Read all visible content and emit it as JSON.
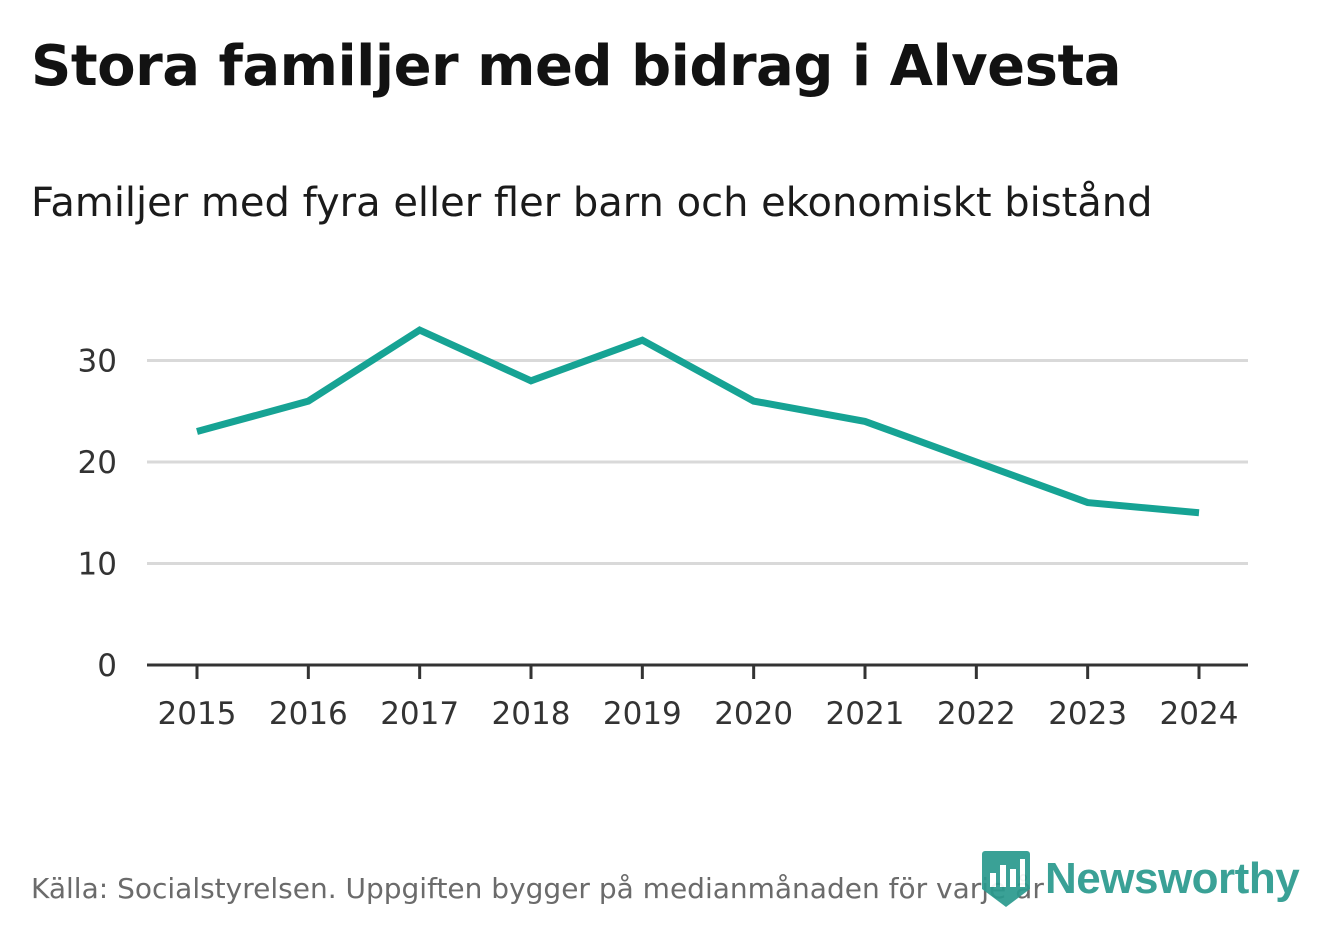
{
  "header": {
    "title": "Stora familjer med bidrag i Alvesta",
    "subtitle": "Familjer med fyra eller fler barn och ekonomiskt bistånd"
  },
  "footer": {
    "source": "Källa: Socialstyrelsen. Uppgiften bygger på medianmånaden för varje år",
    "brand": "Newsworthy"
  },
  "colors": {
    "line": "#16a394",
    "grid": "#d9d9d9",
    "axis": "#333333",
    "brand": "#2a9a8e"
  },
  "chart_data": {
    "type": "line",
    "title": "Stora familjer med bidrag i Alvesta",
    "subtitle": "Familjer med fyra eller fler barn och ekonomiskt bistånd",
    "xlabel": "",
    "ylabel": "",
    "categories": [
      "2015",
      "2016",
      "2017",
      "2018",
      "2019",
      "2020",
      "2021",
      "2022",
      "2023",
      "2024"
    ],
    "series": [
      {
        "name": "Familjer med fyra eller fler barn och ekonomiskt bistånd",
        "values": [
          23,
          26,
          33,
          28,
          32,
          26,
          24,
          20,
          16,
          15
        ]
      }
    ],
    "ylim": [
      0,
      33
    ],
    "yticks": [
      0,
      10,
      20,
      30
    ],
    "grid": true,
    "legend": "none"
  }
}
